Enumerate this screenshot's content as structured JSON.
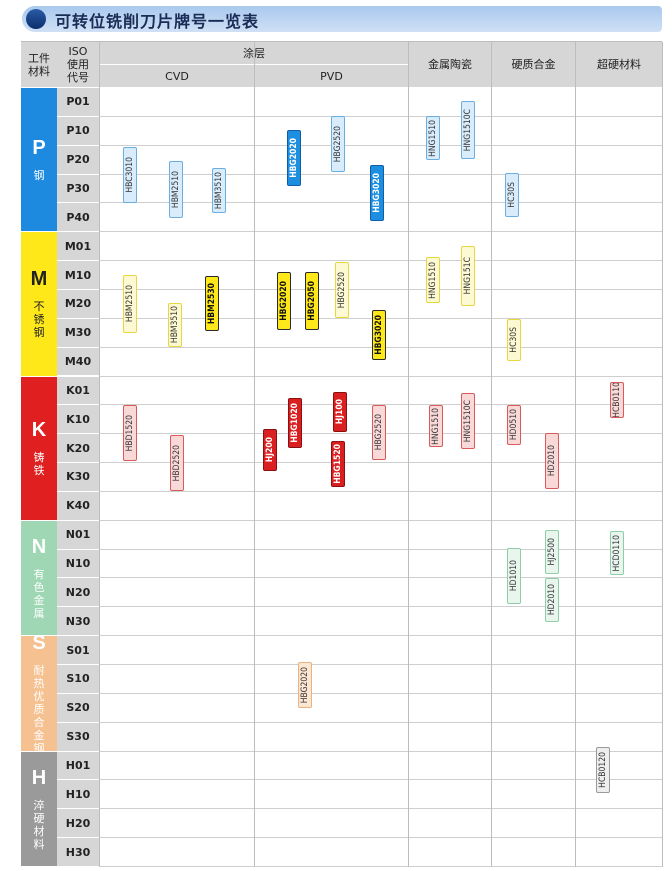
{
  "title": "可转位铣削刀片牌号一览表",
  "headers": {
    "material": "工件材料",
    "iso": "ISO使用代号",
    "coating": "涂层",
    "cvd": "CVD",
    "pvd": "PVD",
    "cermet": "金属陶瓷",
    "carbide": "硬质合金",
    "superhard": "超硬材料"
  },
  "groups": [
    {
      "letter": "P",
      "name": "钢",
      "bg": "#1d8ae0",
      "fg": "#ffffff",
      "codes": [
        "P01",
        "P10",
        "P20",
        "P30",
        "P40"
      ]
    },
    {
      "letter": "M",
      "name": "不锈钢",
      "bg": "#ffe81a",
      "fg": "#222222",
      "codes": [
        "M01",
        "M10",
        "M20",
        "M30",
        "M40"
      ]
    },
    {
      "letter": "K",
      "name": "铸铁",
      "bg": "#e02020",
      "fg": "#ffffff",
      "codes": [
        "K01",
        "K10",
        "K20",
        "K30",
        "K40"
      ]
    },
    {
      "letter": "N",
      "name": "有色金属",
      "bg": "#9fd6b4",
      "fg": "#ffffff",
      "codes": [
        "N01",
        "N10",
        "N20",
        "N30"
      ]
    },
    {
      "letter": "S",
      "name": "耐热优质合金钢",
      "bg": "#f6c190",
      "fg": "#ffffff",
      "codes": [
        "S01",
        "S10",
        "S20",
        "S30"
      ]
    },
    {
      "letter": "H",
      "name": "淬硬材料",
      "bg": "#9a9a9a",
      "fg": "#ffffff",
      "codes": [
        "H01",
        "H10",
        "H20",
        "H30"
      ]
    }
  ],
  "grades": [
    {
      "label": "HBC3010",
      "style": "light-blue"
    },
    {
      "label": "HBM2510",
      "style": "light-blue"
    },
    {
      "label": "HBM3510",
      "style": "light-blue"
    },
    {
      "label": "HBG2020",
      "style": "dark-blue"
    },
    {
      "label": "HBG2520",
      "style": "light-blue"
    },
    {
      "label": "HBG3020",
      "style": "dark-blue"
    },
    {
      "label": "HNG1510",
      "style": "light-blue"
    },
    {
      "label": "HNG1510C",
      "style": "light-blue"
    },
    {
      "label": "HC30S",
      "style": "light-blue"
    },
    {
      "label": "HBM2510",
      "style": "light-yellow"
    },
    {
      "label": "HBM3510",
      "style": "light-yellow"
    },
    {
      "label": "HBM2530",
      "style": "dark-yellow"
    },
    {
      "label": "HBG2020",
      "style": "dark-yellow"
    },
    {
      "label": "HBG2050",
      "style": "dark-yellow"
    },
    {
      "label": "HBG2520",
      "style": "light-yellow"
    },
    {
      "label": "HBG3020",
      "style": "dark-yellow"
    },
    {
      "label": "HNG1510",
      "style": "light-yellow"
    },
    {
      "label": "HNG151C",
      "style": "light-yellow"
    },
    {
      "label": "HC30S",
      "style": "light-yellow"
    },
    {
      "label": "HBD1520",
      "style": "light-red"
    },
    {
      "label": "HBD2520",
      "style": "light-red"
    },
    {
      "label": "HJ200",
      "style": "dark-red"
    },
    {
      "label": "HBG1020",
      "style": "dark-red"
    },
    {
      "label": "HJ100",
      "style": "dark-red"
    },
    {
      "label": "HBG1520",
      "style": "dark-red"
    },
    {
      "label": "HBG2520",
      "style": "light-red"
    },
    {
      "label": "HNG1510",
      "style": "light-red"
    },
    {
      "label": "HNG1510C",
      "style": "light-red"
    },
    {
      "label": "HD0510",
      "style": "light-red"
    },
    {
      "label": "HD2010",
      "style": "light-red"
    },
    {
      "label": "HCB0110",
      "style": "light-red"
    },
    {
      "label": "HD1010",
      "style": "light-green"
    },
    {
      "label": "HJ2500",
      "style": "light-green"
    },
    {
      "label": "HD2010",
      "style": "light-green"
    },
    {
      "label": "HCD0110",
      "style": "light-green"
    },
    {
      "label": "HBG2020",
      "style": "light-orange"
    },
    {
      "label": "HCB0120",
      "style": "light-gray"
    }
  ],
  "styles": {
    "light-blue": {
      "bg": "#d9ecfb",
      "border": "#6aaee2",
      "text": "#333333"
    },
    "dark-blue": {
      "bg": "#1e8fe0",
      "border": "#0f5fa6",
      "text": "#ffffff"
    },
    "light-yellow": {
      "bg": "#fdf9d2",
      "border": "#e7d640",
      "text": "#333333"
    },
    "dark-yellow": {
      "bg": "#ffe81a",
      "border": "#2a2a2a",
      "text": "#111111"
    },
    "light-red": {
      "bg": "#f9d8d8",
      "border": "#d95a5a",
      "text": "#333333"
    },
    "dark-red": {
      "bg": "#d91f1f",
      "border": "#8a0f0f",
      "text": "#ffffff"
    },
    "light-green": {
      "bg": "#e8f6ee",
      "border": "#8ecda7",
      "text": "#333333"
    },
    "light-orange": {
      "bg": "#fde6d2",
      "border": "#eab27f",
      "text": "#333333"
    },
    "light-gray": {
      "bg": "#eeeeee",
      "border": "#9a9a9a",
      "text": "#333333"
    }
  }
}
